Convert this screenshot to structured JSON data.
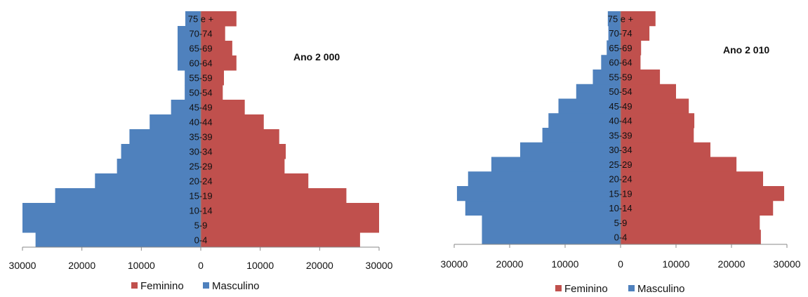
{
  "legend_colors": {
    "Feminino": "#c0504d",
    "Masculino": "#4f81bd"
  },
  "chart_data": [
    {
      "type": "bar",
      "orientation": "horizontal-population-pyramid",
      "title": "Ano 2 000",
      "categories": [
        "0-4",
        "5-9",
        "10-14",
        "15-19",
        "20-24",
        "25-29",
        "30-34",
        "35-39",
        "40-44",
        "45-49",
        "50-54",
        "55-59",
        "60-64",
        "65-69",
        "70-74",
        "75 e +"
      ],
      "series": [
        {
          "name": "Feminino",
          "color": "#c0504d",
          "values": [
            26800,
            30000,
            30000,
            24500,
            18100,
            14100,
            14300,
            13200,
            10600,
            7400,
            3700,
            3900,
            6000,
            5300,
            4100,
            6000
          ]
        },
        {
          "name": "Masculino",
          "color": "#4f81bd",
          "values": [
            27800,
            30000,
            30000,
            24500,
            17800,
            14100,
            13400,
            12000,
            8600,
            5000,
            2700,
            2700,
            3900,
            3900,
            3900,
            2600
          ]
        }
      ],
      "xlim": [
        -30000,
        30000
      ],
      "xticks": [
        "30000",
        "20000",
        "10000",
        "0",
        "10000",
        "20000",
        "30000"
      ],
      "legend": [
        "Feminino",
        "Masculino"
      ],
      "legend_position": "bottom"
    },
    {
      "type": "bar",
      "orientation": "horizontal-population-pyramid",
      "title": "Ano 2 010",
      "categories": [
        "0-4",
        "5-9",
        "10-14",
        "15-19",
        "20-24",
        "25-29",
        "30-34",
        "35-39",
        "40-44",
        "45-49",
        "50-54",
        "55-59",
        "60-64",
        "65-69",
        "70-74",
        "75 e +"
      ],
      "series": [
        {
          "name": "Feminino",
          "color": "#c0504d",
          "values": [
            25300,
            25100,
            27500,
            29500,
            25700,
            20900,
            16200,
            13200,
            13300,
            12300,
            10000,
            7100,
            3600,
            3700,
            5200,
            6300
          ]
        },
        {
          "name": "Masculino",
          "color": "#4f81bd",
          "values": [
            25000,
            25000,
            28000,
            29500,
            27500,
            23300,
            18100,
            14100,
            13000,
            11200,
            8000,
            5000,
            3500,
            2500,
            2200,
            2300
          ]
        }
      ],
      "xlim": [
        -30000,
        30000
      ],
      "xticks": [
        "30000",
        "20000",
        "10000",
        "0",
        "10000",
        "20000",
        "30000"
      ],
      "legend": [
        "Feminino",
        "Masculino"
      ],
      "legend_position": "bottom"
    }
  ]
}
